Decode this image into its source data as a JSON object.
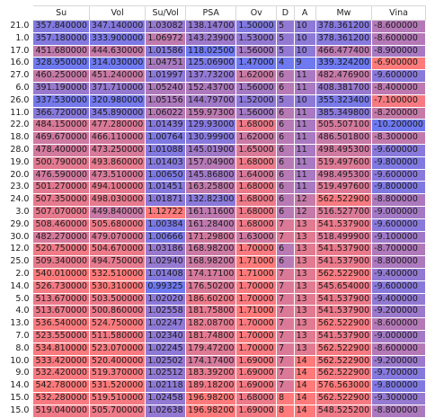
{
  "chart_data": {
    "type": "table",
    "columns": [
      "Su",
      "Vol",
      "Su/Vol",
      "PSA",
      "Ov",
      "D",
      "A",
      "Mw",
      "Vina"
    ],
    "column_formats": [
      "f6",
      "f6",
      "f5",
      "f5",
      "f5",
      "int",
      "int",
      "f6",
      "f6"
    ],
    "colormap": [
      "#6f79f0",
      "#ff7a7a"
    ],
    "rows": [
      {
        "label": "21.0",
        "values": [
          357.84,
          347.14,
          1.03082,
          138.147,
          1.5,
          5,
          10,
          378.3612,
          -8.6
        ]
      },
      {
        "label": "1.0",
        "values": [
          357.18,
          333.9,
          1.06972,
          143.239,
          1.53,
          5,
          10,
          378.3612,
          -8.6
        ]
      },
      {
        "label": "17.0",
        "values": [
          451.68,
          444.63,
          1.01586,
          118.025,
          1.56,
          5,
          10,
          466.4774,
          -8.9
        ]
      },
      {
        "label": "16.0",
        "values": [
          328.95,
          314.03,
          1.04751,
          125.069,
          1.47,
          4,
          9,
          339.3242,
          -6.9
        ]
      },
      {
        "label": "27.0",
        "values": [
          460.25,
          451.24,
          1.01997,
          137.732,
          1.62,
          6,
          11,
          482.4769,
          -9.6
        ]
      },
      {
        "label": "6.0",
        "values": [
          391.19,
          371.71,
          1.0524,
          152.437,
          1.56,
          6,
          11,
          408.3817,
          -8.4
        ]
      },
      {
        "label": "26.0",
        "values": [
          337.53,
          320.98,
          1.05156,
          144.797,
          1.52,
          5,
          10,
          355.3234,
          -7.1
        ]
      },
      {
        "label": "11.0",
        "values": [
          366.72,
          345.89,
          1.06022,
          159.973,
          1.56,
          6,
          11,
          385.3498,
          -8.2
        ]
      },
      {
        "label": "22.0",
        "values": [
          484.15,
          477.28,
          1.01439,
          129.93,
          1.68,
          6,
          11,
          505.5071,
          -10.2
        ]
      },
      {
        "label": "18.0",
        "values": [
          469.67,
          466.11,
          1.00764,
          130.999,
          1.62,
          6,
          11,
          486.5018,
          -8.3
        ]
      },
      {
        "label": "28.0",
        "values": [
          478.4,
          473.25,
          1.01088,
          145.019,
          1.65,
          6,
          11,
          498.4953,
          -9.6
        ]
      },
      {
        "label": "19.0",
        "values": [
          500.79,
          493.86,
          1.01403,
          157.049,
          1.68,
          6,
          11,
          519.4976,
          -9.8
        ]
      },
      {
        "label": "20.0",
        "values": [
          476.59,
          473.51,
          1.0065,
          145.868,
          1.64,
          6,
          11,
          498.4953,
          -9.6
        ]
      },
      {
        "label": "23.0",
        "values": [
          501.27,
          494.1,
          1.01451,
          163.258,
          1.68,
          6,
          11,
          519.4976,
          -9.8
        ]
      },
      {
        "label": "24.0",
        "values": [
          507.35,
          498.03,
          1.01871,
          132.823,
          1.68,
          6,
          12,
          562.5229,
          -8.8
        ]
      },
      {
        "label": "3.0",
        "values": [
          507.07,
          449.84,
          1.12722,
          161.116,
          1.68,
          6,
          12,
          516.5277,
          -9.0
        ]
      },
      {
        "label": "29.0",
        "values": [
          508.46,
          505.68,
          1.00384,
          161.284,
          1.68,
          7,
          13,
          541.5379,
          -9.6
        ]
      },
      {
        "label": "30.0",
        "values": [
          482.27,
          479.07,
          1.00666,
          171.298,
          1.63,
          7,
          13,
          518.4999,
          -9.1
        ]
      },
      {
        "label": "12.0",
        "values": [
          520.75,
          504.67,
          1.03186,
          168.982,
          1.7,
          6,
          13,
          541.5379,
          -8.7
        ]
      },
      {
        "label": "25.0",
        "values": [
          509.34,
          494.75,
          1.0294,
          168.982,
          1.71,
          6,
          13,
          541.5379,
          -8.8
        ]
      },
      {
        "label": "2.0",
        "values": [
          540.01,
          532.51,
          1.01408,
          174.171,
          1.71,
          7,
          13,
          562.5229,
          -9.4
        ]
      },
      {
        "label": "14.0",
        "values": [
          526.73,
          530.31,
          0.99325,
          176.502,
          1.7,
          7,
          13,
          545.654,
          -9.6
        ]
      },
      {
        "label": "5.0",
        "values": [
          513.67,
          503.5,
          1.0202,
          186.602,
          1.7,
          7,
          13,
          541.5379,
          -9.4
        ]
      },
      {
        "label": "4.0",
        "values": [
          513.67,
          500.86,
          1.02558,
          181.758,
          1.71,
          7,
          13,
          541.5379,
          -9.2
        ]
      },
      {
        "label": "13.0",
        "values": [
          536.54,
          524.75,
          1.02247,
          182.087,
          1.7,
          7,
          13,
          562.5229,
          -8.6
        ]
      },
      {
        "label": "7.0",
        "values": [
          523.55,
          511.58,
          1.0234,
          181.748,
          1.7,
          7,
          13,
          541.5379,
          -9.0
        ]
      },
      {
        "label": "8.0",
        "values": [
          534.81,
          523.07,
          1.02245,
          179.472,
          1.7,
          7,
          13,
          562.5229,
          -8.6
        ]
      },
      {
        "label": "10.0",
        "values": [
          533.42,
          520.4,
          1.02502,
          174.174,
          1.69,
          7,
          14,
          562.5229,
          -9.2
        ]
      },
      {
        "label": "9.0",
        "values": [
          532.42,
          519.37,
          1.02512,
          183.392,
          1.69,
          7,
          14,
          562.5229,
          -9.7
        ]
      },
      {
        "label": "14.0",
        "values": [
          542.78,
          531.52,
          1.02118,
          189.182,
          1.69,
          7,
          14,
          576.563,
          -9.8
        ]
      },
      {
        "label": "15.0",
        "values": [
          532.28,
          519.51,
          1.02458,
          196.982,
          1.68,
          8,
          14,
          562.5229,
          -9.3
        ]
      },
      {
        "label": "15.0",
        "values": [
          519.04,
          505.7,
          1.02638,
          196.982,
          1.69,
          8,
          14,
          548.5252,
          -8.8
        ]
      }
    ]
  }
}
